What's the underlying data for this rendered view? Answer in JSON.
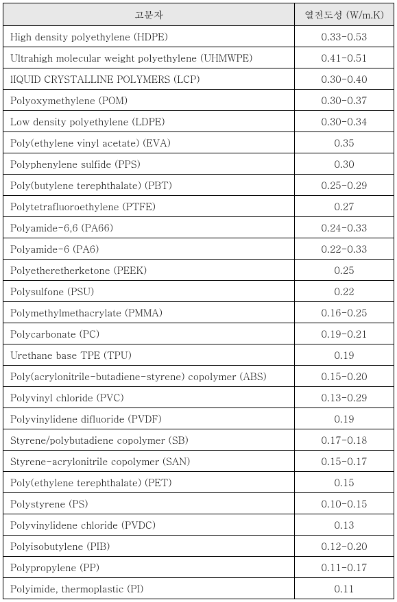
{
  "table": {
    "columns": [
      "고분자",
      "열전도성 (W/m.K)"
    ],
    "header_bg": "#e8e8e8",
    "border_color": "#000000",
    "rows": [
      {
        "polymer": "High density polyethylene (HDPE)",
        "conductivity": "0.33-0.53"
      },
      {
        "polymer": "Ultrahigh molecular weight polyethylene (UHMWPE)",
        "conductivity": "0.41-0.51"
      },
      {
        "polymer": "lIQUID CRYSTALLINE POLYMERS (LCP)",
        "conductivity": "0.30-0.40"
      },
      {
        "polymer": "Polyoxymethylene (POM)",
        "conductivity": "0.30-0.37"
      },
      {
        "polymer": "Low density polyethylene (LDPE)",
        "conductivity": "0.30-0.34"
      },
      {
        "polymer": "Poly(ethylene vinyl acetate) (EVA)",
        "conductivity": "0.35"
      },
      {
        "polymer": "Polyphenylene sulfide (PPS)",
        "conductivity": "0.30"
      },
      {
        "polymer": "Poly(butylene terephthalate) (PBT)",
        "conductivity": "0.25-0.29"
      },
      {
        "polymer": "Polytetrafluoroethylene (PTFE)",
        "conductivity": "0.27"
      },
      {
        "polymer": "Polyamide-6,6 (PA66)",
        "conductivity": "0.24-0.33"
      },
      {
        "polymer": "Polyamide-6 (PA6)",
        "conductivity": "0.22-0.33"
      },
      {
        "polymer": "Polyetheretherketone (PEEK)",
        "conductivity": "0.25"
      },
      {
        "polymer": "Polysulfone (PSU)",
        "conductivity": "0.22"
      },
      {
        "polymer": "Polymethylmethacrylate (PMMA)",
        "conductivity": "0.16-0.25"
      },
      {
        "polymer": "Polycarbonate (PC)",
        "conductivity": "0.19-0.21"
      },
      {
        "polymer": "Urethane base TPE (TPU)",
        "conductivity": "0.19"
      },
      {
        "polymer": "Poly(acrylonitrile-butadiene-styrene) copolymer (ABS)",
        "conductivity": "0.15-0.20"
      },
      {
        "polymer": "Polyvinyl chloride (PVC)",
        "conductivity": "0.13-0.29"
      },
      {
        "polymer": "Polyvinylidene difluoride (PVDF)",
        "conductivity": "0.19"
      },
      {
        "polymer": "Styrene/polybutadiene copolymer (SB)",
        "conductivity": "0.17-0.18"
      },
      {
        "polymer": "Styrene-acrylonitrile copolymer (SAN)",
        "conductivity": "0.15-0.17"
      },
      {
        "polymer": "Poly(ethylene terephthalate) (PET)",
        "conductivity": "0.15"
      },
      {
        "polymer": "Polystyrene (PS)",
        "conductivity": "0.10-0.15"
      },
      {
        "polymer": "Polyvinylidene chloride (PVDC)",
        "conductivity": "0.13"
      },
      {
        "polymer": "Polyisobutylene (PIB)",
        "conductivity": "0.12-0.20"
      },
      {
        "polymer": "Polypropylene (PP)",
        "conductivity": "0.11-0.17"
      },
      {
        "polymer": "Polyimide, thermoplastic (PI)",
        "conductivity": "0.11"
      }
    ]
  }
}
